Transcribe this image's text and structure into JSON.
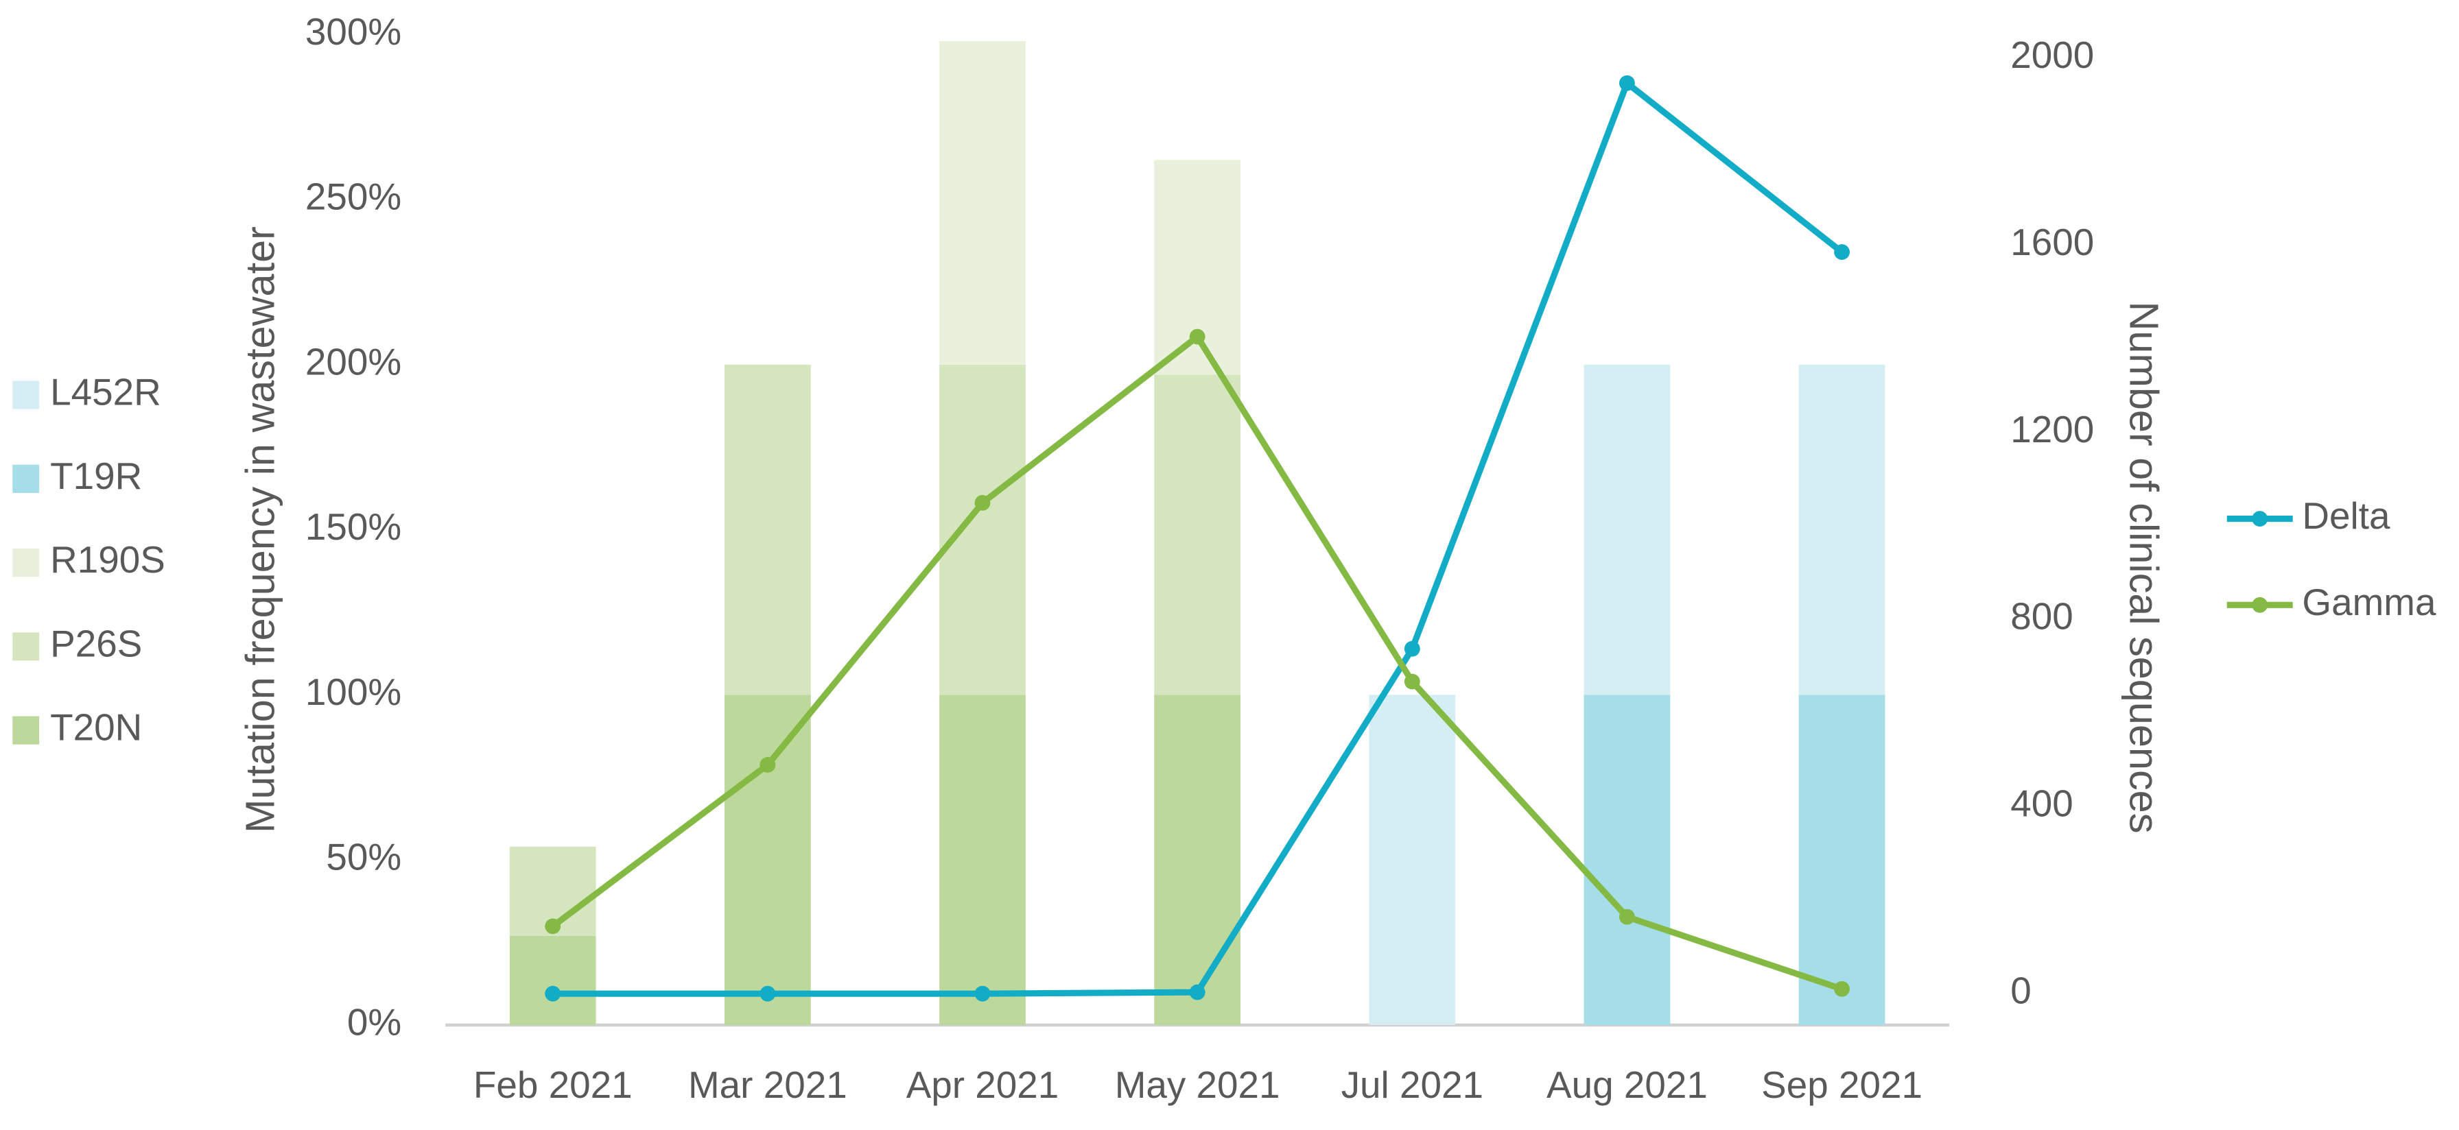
{
  "chart_data": {
    "type": "bar-line",
    "y_label": "Mutation frequency in wastewater",
    "y2_label": "Number of clinical sequences",
    "categories": [
      "Feb 2021",
      "Mar 2021",
      "Apr 2021",
      "May 2021",
      "Jul 2021",
      "Aug 2021",
      "Sep 2021"
    ],
    "series": [
      {
        "name": "T20N",
        "type": "bar",
        "color": "#bcd99b",
        "values": [
          27,
          100,
          100,
          100,
          null,
          null,
          null
        ]
      },
      {
        "name": "P26S",
        "type": "bar",
        "color": "#d5e5be",
        "values": [
          27,
          100,
          100,
          97,
          null,
          null,
          null
        ]
      },
      {
        "name": "R190S",
        "type": "bar",
        "color": "#e9f1dd",
        "values": [
          null,
          null,
          98,
          65,
          null,
          null,
          null
        ]
      },
      {
        "name": "T19R",
        "type": "bar",
        "color": "#a5dde9",
        "values": [
          null,
          null,
          null,
          null,
          null,
          100,
          100
        ]
      },
      {
        "name": "L452R",
        "type": "bar",
        "color": "#d4eef4",
        "values": [
          null,
          null,
          null,
          null,
          100,
          100,
          100
        ]
      },
      {
        "name": "Delta",
        "type": "line",
        "axis": "y2",
        "color": "#12acc6",
        "values": [
          0,
          0,
          0,
          3,
          737,
          1946,
          1585
        ]
      },
      {
        "name": "Gamma",
        "type": "line",
        "axis": "y2",
        "color": "#84b944",
        "values": [
          144,
          489,
          1049,
          1404,
          667,
          164,
          10
        ]
      }
    ],
    "ylim": [
      0,
      300
    ],
    "yticks": [
      {
        "value": 0,
        "label": "0%"
      },
      {
        "value": 50,
        "label": "50%"
      },
      {
        "value": 100,
        "label": "100%"
      },
      {
        "value": 150,
        "label": "150%"
      },
      {
        "value": 200,
        "label": "200%"
      },
      {
        "value": 250,
        "label": "250%"
      },
      {
        "value": 300,
        "label": "300%"
      }
    ],
    "y2lim": [
      -67,
      2050
    ],
    "y2ticks": [
      0,
      400,
      800,
      1200,
      1600,
      2000
    ],
    "grid": false
  }
}
